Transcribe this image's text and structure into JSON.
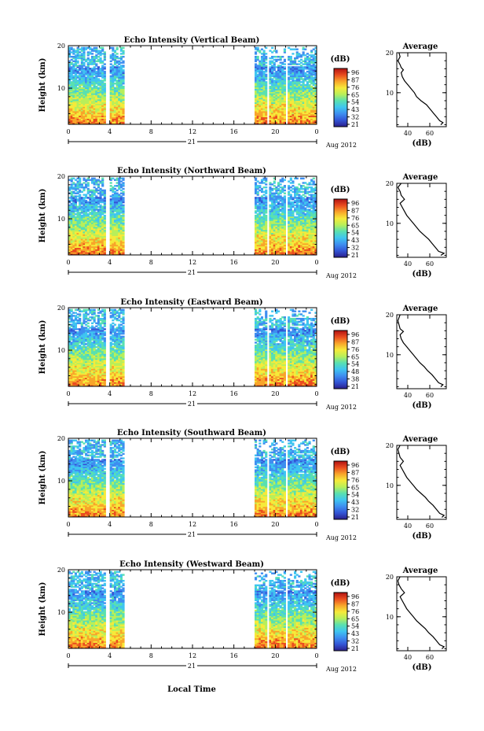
{
  "colorbar": {
    "unit": "(dB)",
    "ticks": [
      "96",
      "87",
      "76",
      "65",
      "54",
      "43",
      "32",
      "21"
    ],
    "ticks_eastward": [
      "96",
      "87",
      "76",
      "65",
      "54",
      "48",
      "38",
      "21"
    ],
    "colormap": [
      "#2a1e8c",
      "#3355d6",
      "#3e8ef0",
      "#3fc5f0",
      "#59e0b0",
      "#b8ef5a",
      "#f6ea3a",
      "#f8a52a",
      "#ea4c1f",
      "#b11212"
    ]
  },
  "shared": {
    "y_label": "Height (km)",
    "x_ticks": [
      "0",
      "4",
      "8",
      "12",
      "16",
      "20",
      "0"
    ],
    "day_label": "21",
    "date_label": "Aug 2012",
    "x_title": "Local Time",
    "avg_title": "Average",
    "avg_xlabel": "(dB)",
    "y_ticks": [
      "20",
      "10"
    ]
  },
  "chart_data": [
    {
      "type": "heatmap",
      "title": "Echo Intensity (Vertical Beam)",
      "xlim_hours": [
        0,
        24
      ],
      "ylim_km": [
        1.5,
        20
      ],
      "data_gaps_hours": [
        [
          3.7,
          4.0
        ],
        [
          5.4,
          18.0
        ],
        [
          19.2,
          19.4
        ],
        [
          20.9,
          21.1
        ]
      ],
      "avg_profile": {
        "xticks": [
          "40",
          "60"
        ],
        "xlim": [
          30,
          75
        ],
        "points": [
          [
            70,
            2
          ],
          [
            72,
            2.5
          ],
          [
            69,
            3
          ],
          [
            66,
            4
          ],
          [
            63,
            5
          ],
          [
            60,
            6
          ],
          [
            57,
            7
          ],
          [
            52,
            8
          ],
          [
            48,
            9
          ],
          [
            46,
            10
          ],
          [
            43,
            11
          ],
          [
            40,
            12
          ],
          [
            37,
            13
          ],
          [
            35,
            14
          ],
          [
            34,
            15
          ],
          [
            36,
            15.7
          ],
          [
            34,
            16.3
          ],
          [
            33,
            17
          ],
          [
            31,
            18
          ],
          [
            33,
            19
          ],
          [
            32,
            20
          ]
        ]
      }
    },
    {
      "type": "heatmap",
      "title": "Echo Intensity (Northward Beam)",
      "xlim_hours": [
        0,
        24
      ],
      "ylim_km": [
        1.5,
        20
      ],
      "data_gaps_hours": [
        [
          3.7,
          4.0
        ],
        [
          5.4,
          18.0
        ],
        [
          19.2,
          19.4
        ],
        [
          20.9,
          21.1
        ]
      ],
      "avg_profile": {
        "xticks": [
          "40",
          "60"
        ],
        "xlim": [
          30,
          75
        ],
        "points": [
          [
            70,
            2
          ],
          [
            73,
            2.5
          ],
          [
            68,
            3
          ],
          [
            65,
            4
          ],
          [
            62,
            5
          ],
          [
            59,
            6
          ],
          [
            55,
            7
          ],
          [
            51,
            8
          ],
          [
            48,
            9
          ],
          [
            45,
            10
          ],
          [
            42,
            11
          ],
          [
            39,
            12
          ],
          [
            37,
            13
          ],
          [
            35,
            14
          ],
          [
            33,
            15
          ],
          [
            37,
            16
          ],
          [
            34,
            17
          ],
          [
            33,
            18
          ],
          [
            31,
            19
          ],
          [
            34,
            20
          ]
        ]
      }
    },
    {
      "type": "heatmap",
      "title": "Echo Intensity (Eastward Beam)",
      "xlim_hours": [
        0,
        24
      ],
      "ylim_km": [
        1.5,
        20
      ],
      "data_gaps_hours": [
        [
          3.7,
          4.0
        ],
        [
          5.4,
          18.0
        ],
        [
          19.2,
          19.4
        ],
        [
          20.9,
          21.1
        ]
      ],
      "avg_profile": {
        "xticks": [
          "40",
          "60"
        ],
        "xlim": [
          30,
          75
        ],
        "points": [
          [
            70,
            2
          ],
          [
            72,
            2.5
          ],
          [
            68,
            3
          ],
          [
            65,
            4
          ],
          [
            62,
            5
          ],
          [
            58,
            6
          ],
          [
            55,
            7
          ],
          [
            51,
            8
          ],
          [
            48,
            9
          ],
          [
            45,
            10
          ],
          [
            42,
            11
          ],
          [
            39,
            12
          ],
          [
            36,
            13
          ],
          [
            34,
            14
          ],
          [
            33,
            15
          ],
          [
            36,
            15.8
          ],
          [
            33,
            16.5
          ],
          [
            32,
            17.5
          ],
          [
            31,
            18.5
          ],
          [
            33,
            20
          ]
        ]
      }
    },
    {
      "type": "heatmap",
      "title": "Echo Intensity (Southward Beam)",
      "xlim_hours": [
        0,
        24
      ],
      "ylim_km": [
        1.5,
        20
      ],
      "data_gaps_hours": [
        [
          3.7,
          4.0
        ],
        [
          5.4,
          18.0
        ],
        [
          19.2,
          19.4
        ],
        [
          20.9,
          21.1
        ]
      ],
      "avg_profile": {
        "xticks": [
          "40",
          "60"
        ],
        "xlim": [
          30,
          75
        ],
        "points": [
          [
            71,
            2
          ],
          [
            73,
            2.5
          ],
          [
            69,
            3
          ],
          [
            66,
            4
          ],
          [
            63,
            5
          ],
          [
            59,
            6
          ],
          [
            56,
            7
          ],
          [
            52,
            8
          ],
          [
            48,
            9
          ],
          [
            45,
            10
          ],
          [
            42,
            11
          ],
          [
            39,
            12
          ],
          [
            37,
            13
          ],
          [
            35,
            14
          ],
          [
            33,
            15
          ],
          [
            36,
            16
          ],
          [
            33,
            17
          ],
          [
            32,
            18
          ],
          [
            31,
            19
          ],
          [
            33,
            20
          ]
        ]
      }
    },
    {
      "type": "heatmap",
      "title": "Echo Intensity (Westward Beam)",
      "xlim_hours": [
        0,
        24
      ],
      "ylim_km": [
        1.5,
        20
      ],
      "data_gaps_hours": [
        [
          3.7,
          4.0
        ],
        [
          5.4,
          18.0
        ],
        [
          19.2,
          19.4
        ],
        [
          20.9,
          21.1
        ]
      ],
      "avg_profile": {
        "xticks": [
          "40",
          "60"
        ],
        "xlim": [
          30,
          75
        ],
        "points": [
          [
            71,
            2
          ],
          [
            73,
            2.5
          ],
          [
            69,
            3
          ],
          [
            66,
            4
          ],
          [
            63,
            5
          ],
          [
            59,
            6
          ],
          [
            56,
            7
          ],
          [
            52,
            8
          ],
          [
            48,
            9
          ],
          [
            45,
            10
          ],
          [
            42,
            11
          ],
          [
            39,
            12
          ],
          [
            37,
            13
          ],
          [
            35,
            14
          ],
          [
            33,
            15
          ],
          [
            37,
            16
          ],
          [
            34,
            17
          ],
          [
            32,
            18
          ],
          [
            31,
            19
          ],
          [
            33,
            20
          ]
        ]
      }
    }
  ]
}
